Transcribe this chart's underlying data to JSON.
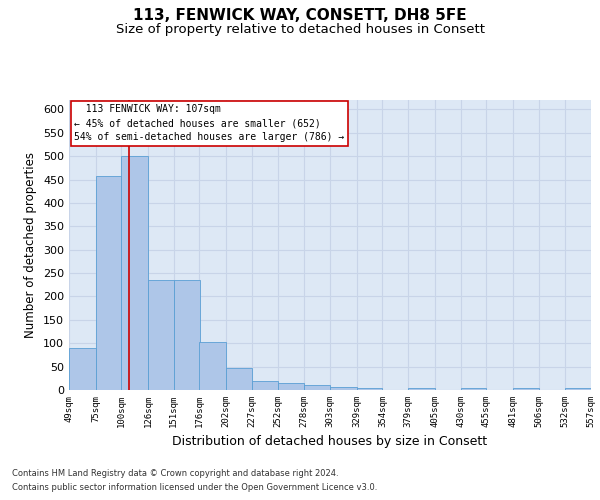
{
  "title": "113, FENWICK WAY, CONSETT, DH8 5FE",
  "subtitle": "Size of property relative to detached houses in Consett",
  "xlabel": "Distribution of detached houses by size in Consett",
  "ylabel": "Number of detached properties",
  "footer1": "Contains HM Land Registry data © Crown copyright and database right 2024.",
  "footer2": "Contains public sector information licensed under the Open Government Licence v3.0.",
  "bin_edges": [
    49,
    75,
    100,
    126,
    151,
    176,
    202,
    227,
    252,
    278,
    303,
    329,
    354,
    379,
    405,
    430,
    455,
    481,
    506,
    532,
    557
  ],
  "bin_labels": [
    "49sqm",
    "75sqm",
    "100sqm",
    "126sqm",
    "151sqm",
    "176sqm",
    "202sqm",
    "227sqm",
    "252sqm",
    "278sqm",
    "303sqm",
    "329sqm",
    "354sqm",
    "379sqm",
    "405sqm",
    "430sqm",
    "455sqm",
    "481sqm",
    "506sqm",
    "532sqm",
    "557sqm"
  ],
  "bar_heights": [
    90,
    457,
    500,
    235,
    235,
    103,
    47,
    20,
    14,
    10,
    7,
    5,
    0,
    5,
    0,
    5,
    0,
    5,
    0,
    5
  ],
  "bar_color": "#aec6e8",
  "bar_edge_color": "#5a9fd4",
  "vline_x": 107,
  "vline_color": "#cc0000",
  "annotation_title": "113 FENWICK WAY: 107sqm",
  "annotation_line1": "← 45% of detached houses are smaller (652)",
  "annotation_line2": "54% of semi-detached houses are larger (786) →",
  "annotation_box_color": "#cc0000",
  "ylim": [
    0,
    620
  ],
  "yticks": [
    0,
    50,
    100,
    150,
    200,
    250,
    300,
    350,
    400,
    450,
    500,
    550,
    600
  ],
  "grid_color": "#c8d4e8",
  "background_color": "#dde8f5",
  "title_fontsize": 11,
  "subtitle_fontsize": 9.5
}
